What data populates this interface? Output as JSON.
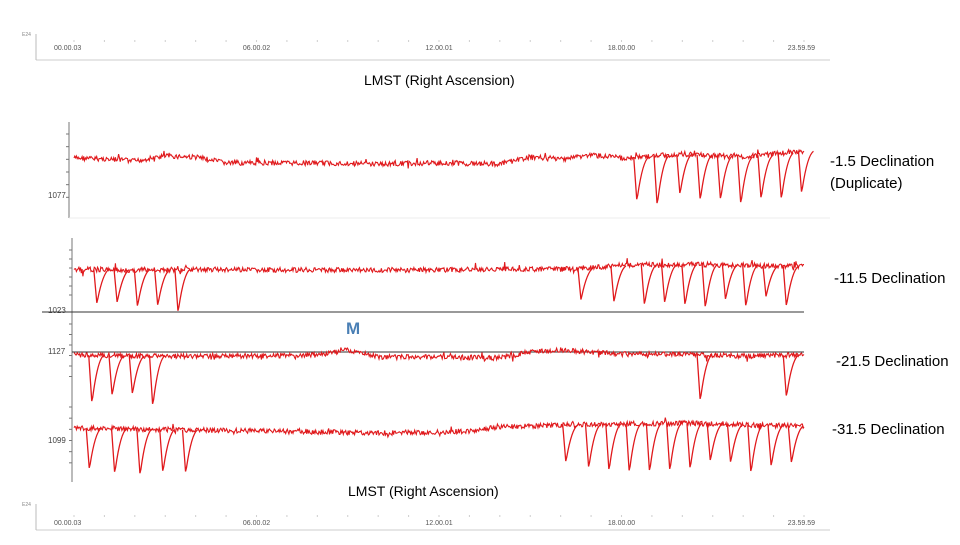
{
  "chart_data": {
    "type": "line",
    "time_axis": {
      "ticks": [
        "00.00.03",
        "06.00.02",
        "12.00.01",
        "18.00.00",
        "23.59.59"
      ],
      "corner_label": "E24",
      "xlabel": "LMST (Right Ascension)"
    },
    "series_color": "#e0191c",
    "series": [
      {
        "name": "-1.5 Declination (Duplicate)",
        "label_lines": [
          "-1.5 Declination",
          "(Duplicate)"
        ],
        "y_tick_label": "1077",
        "x": [
          "00.00.03",
          "01.00.00",
          "02.00.00",
          "03.00.00",
          "04.00.00",
          "05.00.00",
          "06.00.02",
          "08.00.00",
          "10.00.00",
          "12.00.01",
          "14.00.00",
          "15.00.00",
          "16.00.00",
          "17.00.00",
          "18.00.00",
          "20.00.00",
          "22.00.00",
          "23.59.59"
        ],
        "values": [
          0.35,
          0.3,
          0.2,
          0.45,
          0.4,
          0.1,
          0.1,
          0.1,
          0.05,
          0.1,
          0.05,
          0.4,
          0.3,
          0.5,
          0.35,
          0.55,
          0.4,
          0.7
        ],
        "dips": [
          "18.30.00",
          "19.10.00",
          "19.55.00",
          "20.35.00",
          "21.15.00",
          "21.55.00",
          "22.35.00",
          "23.15.00",
          "23.55.00"
        ]
      },
      {
        "name": "-11.5 Declination",
        "y_tick_label": "1023",
        "x": [
          "00.00.03",
          "02.00.00",
          "04.00.00",
          "06.00.02",
          "08.00.00",
          "10.00.00",
          "12.00.01",
          "14.00.00",
          "16.00.00",
          "17.00.00",
          "18.00.00",
          "20.00.00",
          "22.00.00",
          "23.59.59"
        ],
        "values": [
          0.05,
          0.0,
          0.05,
          0.0,
          0.0,
          0.0,
          0.0,
          0.05,
          0.05,
          0.15,
          0.3,
          0.35,
          0.3,
          0.2
        ],
        "dips": [
          "00.45.00",
          "01.25.00",
          "02.05.00",
          "02.45.00",
          "03.25.00",
          "16.40.00",
          "17.45.00",
          "18.45.00",
          "19.25.00",
          "20.05.00",
          "20.45.00",
          "21.25.00",
          "22.05.00",
          "22.45.00",
          "23.25.00"
        ]
      },
      {
        "name": "-21.5 Declination",
        "y_tick_label": "1127",
        "marker_label": "M",
        "x": [
          "00.00.03",
          "02.00.00",
          "04.00.00",
          "06.00.02",
          "08.00.00",
          "09.00.00",
          "10.00.00",
          "12.00.01",
          "14.00.00",
          "15.00.00",
          "16.00.00",
          "17.00.00",
          "18.00.00",
          "20.00.00",
          "22.00.00",
          "23.59.59"
        ],
        "values": [
          0.05,
          0.0,
          0.0,
          0.0,
          0.05,
          0.3,
          -0.05,
          -0.05,
          -0.1,
          0.2,
          0.3,
          0.2,
          0.1,
          0.1,
          0.0,
          0.05
        ],
        "dips": [
          "00.35.00",
          "01.15.00",
          "01.55.00",
          "02.35.00",
          "20.35.00",
          "23.25.00"
        ]
      },
      {
        "name": "-31.5 Declination",
        "y_tick_label": "1099",
        "x": [
          "00.00.03",
          "02.00.00",
          "04.00.00",
          "06.00.02",
          "08.00.00",
          "10.00.00",
          "12.00.01",
          "13.00.00",
          "14.00.00",
          "16.00.00",
          "18.00.00",
          "20.00.00",
          "22.00.00",
          "23.59.59"
        ],
        "values": [
          0.2,
          0.15,
          0.1,
          0.05,
          0.0,
          -0.05,
          0.0,
          0.05,
          0.25,
          0.35,
          0.4,
          0.45,
          0.35,
          0.3
        ],
        "dips": [
          "00.30.00",
          "01.20.00",
          "02.10.00",
          "02.55.00",
          "03.40.00",
          "16.10.00",
          "16.55.00",
          "17.35.00",
          "18.15.00",
          "18.55.00",
          "19.35.00",
          "20.15.00",
          "20.55.00",
          "21.35.00",
          "22.15.00",
          "22.55.00",
          "23.35.00"
        ]
      }
    ]
  }
}
